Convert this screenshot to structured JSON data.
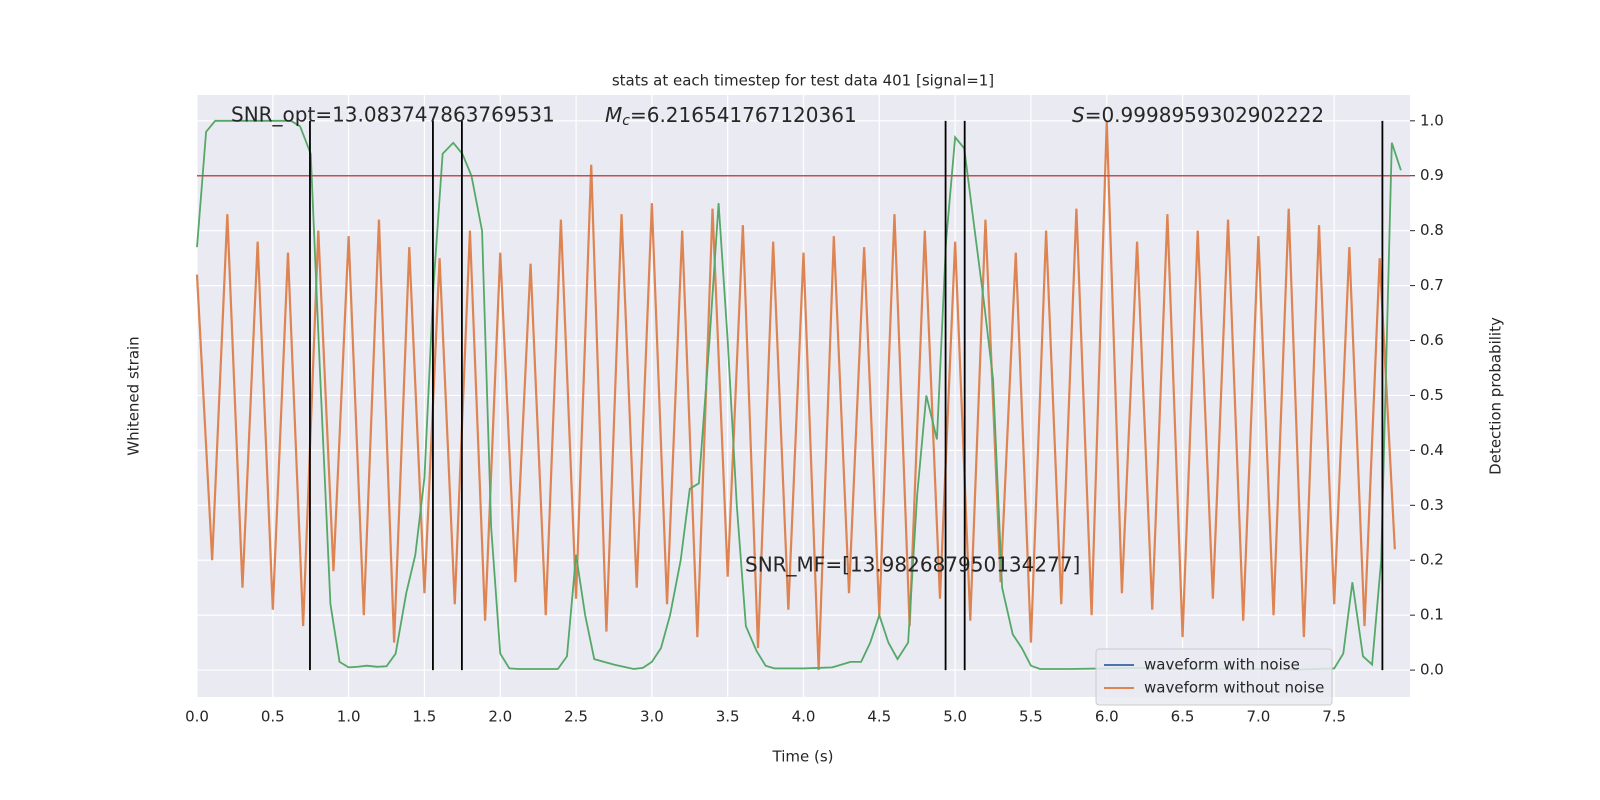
{
  "chart_data": {
    "type": "line",
    "title": "stats at each timestep for test data 401 [signal=1]",
    "xlabel": "Time (s)",
    "ylabel": "Whitened strain",
    "y2label": "Detection probability",
    "annotations": {
      "snr_opt": "SNR_opt=13.083747863769531",
      "mc": {
        "symbol": "M",
        "subscript": "c",
        "text": "=6.216541767120361"
      },
      "s": {
        "symbol": "S",
        "text": "=0.9998959302902222"
      },
      "snr_mf": "SNR_MF=[13.982687950134277]"
    },
    "xlim": [
      0,
      8
    ],
    "xticks": [
      {
        "value": 0,
        "label": "0.0"
      },
      0.5,
      {
        "value": 1,
        "label": "1.0"
      },
      1.5,
      {
        "value": 2,
        "label": "2.0"
      },
      2.5,
      {
        "value": 3,
        "label": "3.0"
      },
      3.5,
      {
        "value": 4,
        "label": "4.0"
      },
      4.5,
      {
        "value": 5,
        "label": "5.0"
      },
      5.5,
      {
        "value": 6,
        "label": "6.0"
      },
      6.5,
      {
        "value": 7,
        "label": "7.0"
      },
      7.5
    ],
    "y2lim": [
      -0.049,
      1.047
    ],
    "y2ticks": [
      {
        "value": 0,
        "label": "0.0"
      },
      0.1,
      0.2,
      0.3,
      0.4,
      0.5,
      0.6,
      0.7,
      0.8,
      0.9,
      {
        "value": 1,
        "label": "1.0"
      }
    ],
    "grid": true,
    "legend": "lower right",
    "series": [
      {
        "name": "waveform with noise",
        "color": "#4c72b0"
      },
      {
        "name": "waveform without noise",
        "color": "#dd8452",
        "x": [
          0,
          0.1,
          0.2,
          0.3,
          0.4,
          0.5,
          0.6,
          0.7,
          0.8,
          0.9,
          1,
          1.1,
          1.2,
          1.3,
          1.4,
          1.5,
          1.6,
          1.7,
          1.8,
          1.9,
          2,
          2.1,
          2.2,
          2.3,
          2.4,
          2.5,
          2.6,
          2.7,
          2.8,
          2.9,
          3,
          3.1,
          3.2,
          3.3,
          3.4,
          3.5,
          3.6,
          3.7,
          3.8,
          3.9,
          4,
          4.1,
          4.2,
          4.3,
          4.4,
          4.5,
          4.6,
          4.7,
          4.8,
          4.9,
          5,
          5.1,
          5.2,
          5.3,
          5.4,
          5.5,
          5.6,
          5.7,
          5.8,
          5.9,
          6,
          6.1,
          6.2,
          6.3,
          6.4,
          6.5,
          6.6,
          6.7,
          6.8,
          6.9,
          7,
          7.1,
          7.2,
          7.3,
          7.4,
          7.5,
          7.6,
          7.7,
          7.8,
          7.9
        ],
        "values": [
          0.72,
          0.2,
          0.83,
          0.15,
          0.78,
          0.11,
          0.76,
          0.08,
          0.8,
          0.18,
          0.79,
          0.1,
          0.82,
          0.05,
          0.77,
          0.14,
          0.75,
          0.12,
          0.8,
          0.09,
          0.76,
          0.16,
          0.74,
          0.1,
          0.82,
          0.13,
          0.92,
          0.07,
          0.83,
          0.15,
          0.85,
          0.12,
          0.8,
          0.06,
          0.84,
          0.17,
          0.81,
          0.04,
          0.78,
          0.11,
          0.76,
          0.0,
          0.79,
          0.14,
          0.77,
          0.1,
          0.83,
          0.08,
          0.8,
          0.13,
          0.78,
          0.09,
          0.82,
          0.16,
          0.76,
          0.05,
          0.8,
          0.12,
          0.84,
          0.1,
          1.0,
          0.14,
          0.78,
          0.11,
          0.83,
          0.06,
          0.8,
          0.13,
          0.82,
          0.09,
          0.79,
          0.1,
          0.84,
          0.06,
          0.81,
          0.12,
          0.77,
          0.08,
          0.75,
          0.22
        ]
      },
      {
        "name": "detection probability",
        "color": "#55a868",
        "axis": "y2",
        "x": [
          0,
          0.06,
          0.12,
          0.3,
          0.5,
          0.62,
          0.68,
          0.75,
          0.81,
          0.88,
          0.94,
          1,
          1.06,
          1.12,
          1.19,
          1.25,
          1.31,
          1.38,
          1.44,
          1.5,
          1.56,
          1.62,
          1.69,
          1.75,
          1.81,
          1.88,
          1.94,
          2,
          2.06,
          2.12,
          2.25,
          2.38,
          2.44,
          2.5,
          2.56,
          2.62,
          2.75,
          2.88,
          2.94,
          3,
          3.06,
          3.12,
          3.19,
          3.25,
          3.31,
          3.38,
          3.44,
          3.5,
          3.56,
          3.62,
          3.69,
          3.75,
          3.81,
          4,
          4.19,
          4.25,
          4.31,
          4.38,
          4.44,
          4.5,
          4.56,
          4.62,
          4.69,
          4.75,
          4.81,
          4.88,
          4.94,
          5,
          5.06,
          5.12,
          5.19,
          5.25,
          5.31,
          5.38,
          5.44,
          5.5,
          5.56,
          5.75,
          6,
          6.25,
          6.5,
          7,
          7.25,
          7.5,
          7.56,
          7.62,
          7.69,
          7.75,
          7.81,
          7.88,
          7.94
        ],
        "values": [
          0.77,
          0.98,
          1.0,
          1.0,
          1.0,
          1.0,
          0.99,
          0.94,
          0.55,
          0.12,
          0.015,
          0.005,
          0.006,
          0.008,
          0.006,
          0.007,
          0.03,
          0.14,
          0.21,
          0.35,
          0.7,
          0.94,
          0.96,
          0.94,
          0.9,
          0.8,
          0.26,
          0.03,
          0.003,
          0.002,
          0.002,
          0.002,
          0.025,
          0.21,
          0.1,
          0.02,
          0.01,
          0.002,
          0.004,
          0.015,
          0.04,
          0.1,
          0.2,
          0.33,
          0.34,
          0.6,
          0.85,
          0.6,
          0.3,
          0.08,
          0.035,
          0.008,
          0.003,
          0.003,
          0.005,
          0.01,
          0.015,
          0.015,
          0.05,
          0.1,
          0.05,
          0.02,
          0.05,
          0.32,
          0.5,
          0.42,
          0.78,
          0.97,
          0.95,
          0.82,
          0.67,
          0.53,
          0.15,
          0.065,
          0.04,
          0.008,
          0.002,
          0.002,
          0.003,
          0.004,
          0.002,
          0.002,
          0.001,
          0.003,
          0.03,
          0.16,
          0.025,
          0.01,
          0.2,
          0.96,
          0.91
        ]
      }
    ],
    "threshold": {
      "value": 0.9,
      "color": "#c44e52"
    },
    "detections": {
      "x": [
        0.745,
        1.556,
        1.747,
        4.937,
        5.063,
        7.818
      ],
      "color": "#000000"
    }
  }
}
